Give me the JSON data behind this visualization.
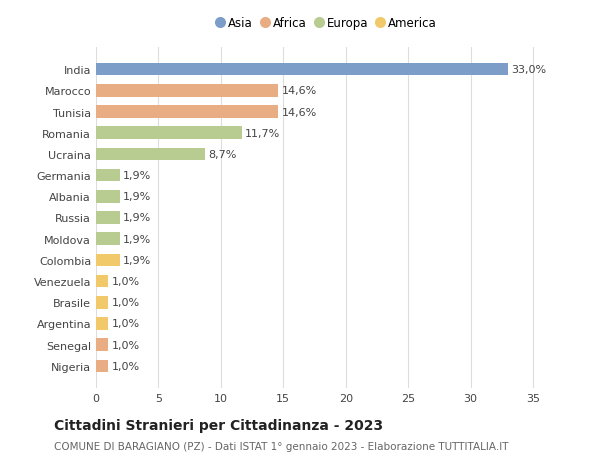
{
  "countries": [
    "India",
    "Marocco",
    "Tunisia",
    "Romania",
    "Ucraina",
    "Germania",
    "Albania",
    "Russia",
    "Moldova",
    "Colombia",
    "Venezuela",
    "Brasile",
    "Argentina",
    "Senegal",
    "Nigeria"
  ],
  "values": [
    33.0,
    14.6,
    14.6,
    11.7,
    8.7,
    1.9,
    1.9,
    1.9,
    1.9,
    1.9,
    1.0,
    1.0,
    1.0,
    1.0,
    1.0
  ],
  "labels": [
    "33,0%",
    "14,6%",
    "14,6%",
    "11,7%",
    "8,7%",
    "1,9%",
    "1,9%",
    "1,9%",
    "1,9%",
    "1,9%",
    "1,0%",
    "1,0%",
    "1,0%",
    "1,0%",
    "1,0%"
  ],
  "continents": [
    "Asia",
    "Africa",
    "Africa",
    "Europa",
    "Europa",
    "Europa",
    "Europa",
    "Europa",
    "Europa",
    "America",
    "America",
    "America",
    "America",
    "Africa",
    "Africa"
  ],
  "continent_colors": {
    "Asia": "#7b9dc8",
    "Africa": "#e8ad82",
    "Europa": "#b8cb90",
    "America": "#f2c96a"
  },
  "legend_order": [
    "Asia",
    "Africa",
    "Europa",
    "America"
  ],
  "title": "Cittadini Stranieri per Cittadinanza - 2023",
  "subtitle": "COMUNE DI BARAGIANO (PZ) - Dati ISTAT 1° gennaio 2023 - Elaborazione TUTTITALIA.IT",
  "xlim": [
    0,
    37
  ],
  "xticks": [
    0,
    5,
    10,
    15,
    20,
    25,
    30,
    35
  ],
  "background_color": "#ffffff",
  "grid_color": "#dddddd",
  "bar_height": 0.6,
  "title_fontsize": 10,
  "subtitle_fontsize": 7.5,
  "label_fontsize": 8,
  "tick_fontsize": 8,
  "legend_fontsize": 8.5
}
